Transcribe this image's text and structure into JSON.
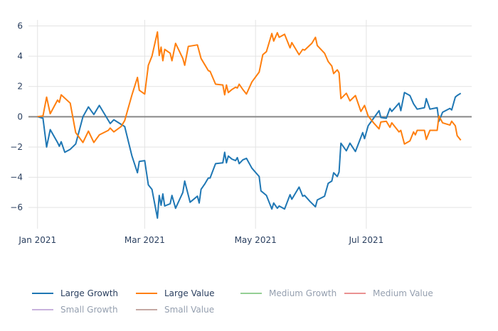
{
  "chart_data": {
    "type": "line",
    "title": "",
    "xlabel": "",
    "ylabel": "",
    "x_unit": "days since 2021-01-01",
    "x_start": "2021-01-01",
    "xlim": [
      -5,
      239
    ],
    "ylim": [
      -7.4,
      6.4
    ],
    "grid": true,
    "legend_position": "bottom",
    "x_ticks": [
      {
        "value": 0,
        "label": "Jan 2021"
      },
      {
        "value": 59,
        "label": "Mar 2021"
      },
      {
        "value": 120,
        "label": "May 2021"
      },
      {
        "value": 181,
        "label": "Jul 2021"
      }
    ],
    "y_ticks": [
      {
        "value": 6,
        "label": "6"
      },
      {
        "value": 4,
        "label": "4"
      },
      {
        "value": 2,
        "label": "2"
      },
      {
        "value": 0,
        "label": "0"
      },
      {
        "value": -2,
        "label": "−2"
      },
      {
        "value": -4,
        "label": "−4"
      },
      {
        "value": -6,
        "label": "−6"
      }
    ],
    "series": [
      {
        "name": "Large Growth",
        "color": "#1f77b4",
        "visible": true,
        "x": [
          0,
          3,
          5,
          7,
          11,
          12,
          13,
          15,
          18,
          21,
          25,
          28,
          31,
          34,
          40,
          42,
          46,
          48,
          52,
          55,
          56,
          59,
          61,
          63,
          66,
          67,
          68,
          69,
          70,
          73,
          74,
          76,
          80,
          81,
          84,
          88,
          89,
          90,
          92,
          94,
          95,
          98,
          102,
          103,
          104,
          105,
          107,
          109,
          110,
          111,
          113,
          115,
          118,
          122,
          123,
          126,
          129,
          130,
          132,
          133,
          136,
          139,
          140,
          144,
          146,
          147,
          150,
          153,
          154,
          158,
          160,
          162,
          163,
          165,
          166,
          167,
          170,
          172,
          175,
          179,
          180,
          182,
          185,
          188,
          189,
          192,
          194,
          195,
          199,
          200,
          202,
          205,
          207,
          209,
          213,
          214,
          216,
          220,
          221,
          223,
          227,
          228,
          230,
          231,
          233
        ],
        "y": [
          0,
          -0.1,
          -2.0,
          -0.85,
          -1.7,
          -1.95,
          -1.65,
          -2.35,
          -2.15,
          -1.8,
          0,
          0.65,
          0.15,
          0.75,
          -0.45,
          -0.2,
          -0.5,
          -0.65,
          -2.6,
          -3.7,
          -2.95,
          -2.9,
          -4.5,
          -4.8,
          -6.7,
          -5.2,
          -5.85,
          -5.1,
          -5.9,
          -5.75,
          -5.2,
          -6.05,
          -5.0,
          -4.25,
          -5.65,
          -5.25,
          -5.7,
          -4.8,
          -4.45,
          -4.05,
          -4.05,
          -3.1,
          -3.05,
          -2.35,
          -3.05,
          -2.6,
          -2.8,
          -2.9,
          -2.7,
          -3.1,
          -2.85,
          -2.75,
          -3.4,
          -3.95,
          -4.9,
          -5.2,
          -6.1,
          -5.7,
          -6.05,
          -5.9,
          -6.1,
          -5.15,
          -5.45,
          -4.65,
          -5.25,
          -5.2,
          -5.6,
          -5.95,
          -5.5,
          -5.25,
          -4.4,
          -4.25,
          -3.7,
          -3.95,
          -3.65,
          -1.75,
          -2.25,
          -1.75,
          -2.3,
          -1.05,
          -1.45,
          -0.6,
          -0.1,
          0.4,
          -0.05,
          -0.1,
          0.55,
          0.35,
          0.9,
          0.4,
          1.6,
          1.4,
          0.85,
          0.5,
          0.6,
          1.2,
          0.5,
          0.6,
          -0.3,
          0.3,
          0.55,
          0.45,
          1.3,
          1.4,
          1.55
        ]
      },
      {
        "name": "Large Value",
        "color": "#ff7f0e",
        "visible": true,
        "x": [
          0,
          3,
          5,
          7,
          11,
          12,
          13,
          18,
          21,
          25,
          28,
          31,
          34,
          39,
          40,
          42,
          46,
          48,
          52,
          55,
          56,
          59,
          61,
          63,
          66,
          67,
          68,
          69,
          70,
          73,
          74,
          76,
          80,
          81,
          83,
          88,
          90,
          92,
          94,
          95,
          98,
          102,
          103,
          104,
          105,
          107,
          109,
          110,
          111,
          113,
          115,
          118,
          122,
          124,
          126,
          129,
          130,
          132,
          133,
          136,
          139,
          140,
          144,
          146,
          147,
          151,
          153,
          154,
          158,
          160,
          162,
          163,
          165,
          166,
          167,
          170,
          172,
          175,
          178,
          180,
          182,
          185,
          188,
          189,
          192,
          194,
          195,
          199,
          200,
          202,
          205,
          207,
          208,
          209,
          213,
          214,
          216,
          220,
          221,
          223,
          227,
          228,
          230,
          231,
          233
        ],
        "y": [
          0,
          0.05,
          1.3,
          0.2,
          1.1,
          0.95,
          1.45,
          0.9,
          -1.05,
          -1.7,
          -0.95,
          -1.7,
          -1.2,
          -0.9,
          -0.75,
          -1.0,
          -0.65,
          -0.25,
          1.45,
          2.6,
          1.75,
          1.5,
          3.4,
          4.0,
          5.6,
          4.05,
          4.6,
          3.7,
          4.45,
          4.2,
          3.7,
          4.85,
          3.85,
          3.4,
          4.65,
          4.75,
          3.85,
          3.45,
          3.05,
          3.0,
          2.15,
          2.1,
          1.45,
          2.1,
          1.6,
          1.8,
          1.95,
          1.9,
          2.15,
          1.8,
          1.5,
          2.3,
          2.95,
          4.1,
          4.3,
          5.5,
          5.0,
          5.55,
          5.25,
          5.45,
          4.55,
          4.9,
          4.1,
          4.45,
          4.4,
          4.85,
          5.25,
          4.7,
          4.2,
          3.65,
          3.35,
          2.85,
          3.1,
          2.9,
          1.2,
          1.55,
          1.05,
          1.4,
          0.35,
          0.75,
          0.05,
          -0.4,
          -0.8,
          -0.35,
          -0.3,
          -0.7,
          -0.4,
          -1.0,
          -0.9,
          -1.8,
          -1.6,
          -1.0,
          -1.2,
          -0.9,
          -0.9,
          -1.5,
          -0.9,
          -0.9,
          0.05,
          -0.4,
          -0.55,
          -0.3,
          -0.6,
          -1.25,
          -1.55
        ]
      },
      {
        "name": "Medium Growth",
        "color": "#2ca02c",
        "visible": false,
        "x": [],
        "y": []
      },
      {
        "name": "Medium Value",
        "color": "#d62728",
        "visible": false,
        "x": [],
        "y": []
      },
      {
        "name": "Small Growth",
        "color": "#9467bd",
        "visible": false,
        "x": [],
        "y": []
      },
      {
        "name": "Small Value",
        "color": "#8c564b",
        "visible": false,
        "x": [],
        "y": []
      }
    ]
  },
  "colors": {
    "grid": "#e3e3e3",
    "zeroline": "#888888",
    "tick_text": "#2a3f5f"
  }
}
